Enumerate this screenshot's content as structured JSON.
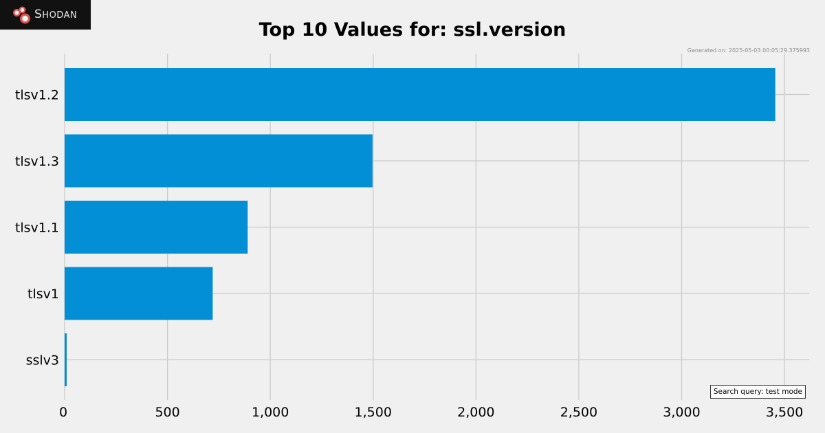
{
  "logo": {
    "text": "Shodan",
    "colors": {
      "background": "#111111",
      "mark": "#e0534f"
    }
  },
  "generated_note": "Generated on: 2025-05-03 00:05:29.375993",
  "search_query": "Search query: test mode",
  "colors": {
    "background": "#f0f0f0",
    "bar": "#028fd6",
    "grid": "#cbcbcb"
  },
  "chart_data": {
    "type": "bar",
    "orientation": "horizontal",
    "title": "Top 10 Values for: ssl.version",
    "categories": [
      "tlsv1.2",
      "tlsv1.3",
      "tlsv1.1",
      "tlsv1",
      "sslv3"
    ],
    "values": [
      3455,
      1497,
      890,
      720,
      10
    ],
    "xlim": [
      0,
      3620
    ],
    "xticks": [
      0,
      500,
      1000,
      1500,
      2000,
      2500,
      3000,
      3500
    ],
    "xtick_labels": [
      "0",
      "500",
      "1,000",
      "1,500",
      "2,000",
      "2,500",
      "3,000",
      "3,500"
    ],
    "xlabel": "",
    "ylabel": "",
    "grid": true
  }
}
